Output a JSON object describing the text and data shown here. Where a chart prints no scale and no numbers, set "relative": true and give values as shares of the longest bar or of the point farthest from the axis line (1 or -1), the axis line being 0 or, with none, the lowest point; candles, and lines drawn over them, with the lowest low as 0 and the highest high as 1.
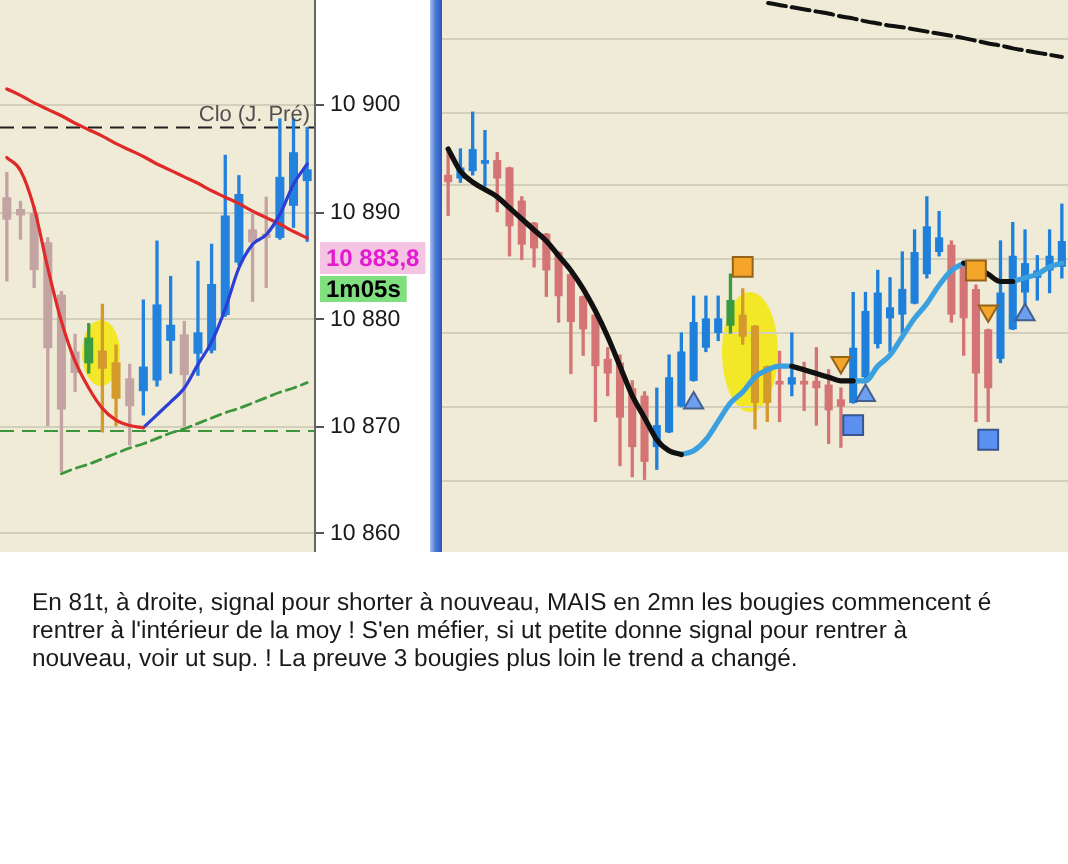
{
  "chart_data": [
    {
      "type": "candlestick",
      "categories": [
        null,
        null,
        null,
        null,
        null,
        null,
        null,
        null,
        null,
        null,
        null,
        null,
        null,
        null,
        null,
        null,
        null,
        null,
        null,
        null,
        null,
        null,
        null
      ],
      "ohlc": [
        [
          10891.4,
          10893.7,
          10883.6,
          10889.3
        ],
        [
          10890.3,
          10891.0,
          10887.5,
          10889.7
        ],
        [
          10889.9,
          10890.5,
          10883.0,
          10884.6
        ],
        [
          10887.2,
          10887.6,
          10870.1,
          10877.3
        ],
        [
          10882.3,
          10882.6,
          10865.8,
          10871.6
        ],
        [
          10877.0,
          10878.6,
          10873.3,
          10875.0
        ],
        [
          10875.9,
          10879.6,
          10875.0,
          10878.3
        ],
        [
          10877.1,
          10881.4,
          10869.5,
          10875.4
        ],
        [
          10876.0,
          10877.6,
          10870.1,
          10872.6
        ],
        [
          10874.5,
          10875.8,
          10868.3,
          10871.9
        ],
        [
          10873.3,
          10881.8,
          10871.1,
          10875.6
        ],
        [
          10874.3,
          10887.3,
          10873.8,
          10881.4
        ],
        [
          10878.0,
          10884.0,
          10875.0,
          10879.5
        ],
        [
          10878.6,
          10879.8,
          10870.1,
          10874.8
        ],
        [
          10876.8,
          10885.4,
          10874.8,
          10878.8
        ],
        [
          10877.1,
          10887.0,
          10876.9,
          10883.3
        ],
        [
          10880.4,
          10895.3,
          10880.3,
          10889.7
        ],
        [
          10885.3,
          10893.4,
          10885.1,
          10891.7
        ],
        [
          10888.4,
          10889.8,
          10881.7,
          10887.2
        ],
        [
          10888.0,
          10891.4,
          10883.0,
          10887.6
        ],
        [
          10887.6,
          10898.7,
          10887.5,
          10893.3
        ],
        [
          10890.6,
          10898.7,
          10888.6,
          10895.6
        ],
        [
          10892.9,
          10897.9,
          10887.3,
          10894.0
        ]
      ],
      "colors": [
        "#c4a3a3",
        "#c4a3a3",
        "#c4a3a3",
        "#c4a3a3",
        "#c4a3a3",
        "#c4a3a3",
        "#3a9a40",
        "#d49a2c",
        "#d49a2c",
        "#c4a3a3",
        "#2282de",
        "#2282de",
        "#2282de",
        "#c4a3a3",
        "#2282de",
        "#2282de",
        "#2282de",
        "#2282de",
        "#c4a3a3",
        "#c4a3a3",
        "#2282de",
        "#2282de",
        "#2282de"
      ],
      "series": [
        {
          "type": "line",
          "color": "#e02a2a",
          "values": [
            10895.1,
            10893.9,
            10890.4,
            10884.8,
            10879.8,
            10876.1,
            10873.6,
            10871.7,
            10870.6,
            10870.1,
            10869.9,
            null,
            null,
            null,
            null,
            null,
            null,
            null,
            null,
            null,
            null,
            null,
            null
          ]
        },
        {
          "type": "line",
          "color": "#2b3fd6",
          "values": [
            null,
            null,
            null,
            null,
            null,
            null,
            null,
            null,
            null,
            null,
            10869.9,
            10871.1,
            10872.3,
            10873.6,
            10875.8,
            10877.9,
            10881.0,
            10884.8,
            10887.0,
            10887.9,
            10889.8,
            10892.6,
            10894.5
          ]
        },
        {
          "type": "line",
          "color": "#e02a2a",
          "values": [
            10901.5,
            10900.9,
            10900.2,
            10899.6,
            10899.0,
            10898.3,
            10897.7,
            10897.1,
            10896.4,
            10895.8,
            10895.2,
            10894.5,
            10893.9,
            10893.3,
            10892.7,
            10892.0,
            10891.4,
            10890.8,
            10890.1,
            10889.5,
            10888.9,
            10888.2,
            10887.6
          ]
        },
        {
          "type": "line",
          "color": "#3c963c",
          "line_style": "dashed",
          "values": [
            null,
            null,
            null,
            null,
            10865.6,
            10866.1,
            10866.5,
            10867.0,
            10867.5,
            10868.0,
            10868.4,
            10868.9,
            10869.4,
            10869.8,
            10870.3,
            10870.8,
            10871.3,
            10871.7,
            10872.2,
            10872.7,
            10873.2,
            10873.6,
            10874.1
          ]
        }
      ],
      "ylim": [
        10858.3,
        10909.8
      ],
      "yticks": [
        {
          "value": 10860,
          "label": "10 860"
        },
        {
          "value": 10870,
          "label": "10 870"
        },
        {
          "value": 10880,
          "label": "10 880"
        },
        {
          "value": 10890,
          "label": "10 890"
        },
        {
          "value": 10900,
          "label": "10 900"
        }
      ],
      "grid": "y",
      "tick_labels": "y",
      "ref_lines": [
        {
          "axis": "y",
          "value": 10897.9,
          "label": "Clo (J. Pré)",
          "color": "#222222",
          "line_style": "dashed"
        },
        {
          "axis": "y",
          "value": 10869.6,
          "color": "#3c963c",
          "line_style": "dashed"
        }
      ],
      "annotations": [
        "10 883,8",
        "1m05s"
      ]
    },
    {
      "type": "candlestick",
      "relative": true,
      "categories": [
        null,
        null,
        null,
        null,
        null,
        null,
        null,
        null,
        null,
        null,
        null,
        null,
        null,
        null,
        null,
        null,
        null,
        null,
        null,
        null,
        null,
        null,
        null,
        null,
        null,
        null,
        null,
        null,
        null,
        null,
        null,
        null,
        null,
        null,
        null,
        null,
        null,
        null,
        null,
        null,
        null,
        null,
        null,
        null,
        null,
        null,
        null,
        null,
        null,
        null,
        null
      ],
      "ohlc": [
        [
          0.83,
          0.89,
          0.72,
          0.81
        ],
        [
          0.82,
          0.9,
          0.81,
          0.85
        ],
        [
          0.84,
          1.0,
          0.83,
          0.9
        ],
        [
          0.86,
          0.95,
          0.8,
          0.87
        ],
        [
          0.87,
          0.89,
          0.73,
          0.82
        ],
        [
          0.85,
          0.85,
          0.61,
          0.69
        ],
        [
          0.76,
          0.77,
          0.6,
          0.64
        ],
        [
          0.7,
          0.7,
          0.58,
          0.63
        ],
        [
          0.67,
          0.67,
          0.5,
          0.57
        ],
        [
          0.62,
          0.62,
          0.43,
          0.5
        ],
        [
          0.56,
          0.56,
          0.29,
          0.43
        ],
        [
          0.5,
          0.5,
          0.34,
          0.41
        ],
        [
          0.45,
          0.45,
          0.16,
          0.31
        ],
        [
          0.33,
          0.36,
          0.23,
          0.29
        ],
        [
          0.32,
          0.34,
          0.04,
          0.17
        ],
        [
          0.25,
          0.27,
          0.01,
          0.09
        ],
        [
          0.23,
          0.24,
          0.0,
          0.05
        ],
        [
          0.09,
          0.25,
          0.03,
          0.15
        ],
        [
          0.13,
          0.34,
          0.13,
          0.28
        ],
        [
          0.2,
          0.4,
          0.2,
          0.35
        ],
        [
          0.27,
          0.5,
          0.27,
          0.43
        ],
        [
          0.36,
          0.5,
          0.35,
          0.44
        ],
        [
          0.4,
          0.5,
          0.38,
          0.44
        ],
        [
          0.42,
          0.56,
          0.4,
          0.49
        ],
        [
          0.45,
          0.52,
          0.37,
          0.39
        ],
        [
          0.42,
          0.42,
          0.14,
          0.21
        ],
        [
          0.31,
          0.31,
          0.16,
          0.21
        ],
        [
          0.27,
          0.35,
          0.16,
          0.26
        ],
        [
          0.26,
          0.4,
          0.23,
          0.28
        ],
        [
          0.27,
          0.32,
          0.19,
          0.26
        ],
        [
          0.27,
          0.36,
          0.15,
          0.25
        ],
        [
          0.26,
          0.3,
          0.1,
          0.19
        ],
        [
          0.22,
          0.25,
          0.09,
          0.2
        ],
        [
          0.21,
          0.51,
          0.21,
          0.36
        ],
        [
          0.28,
          0.51,
          0.27,
          0.46
        ],
        [
          0.37,
          0.57,
          0.36,
          0.51
        ],
        [
          0.44,
          0.55,
          0.35,
          0.47
        ],
        [
          0.45,
          0.62,
          0.4,
          0.52
        ],
        [
          0.48,
          0.68,
          0.48,
          0.62
        ],
        [
          0.56,
          0.77,
          0.55,
          0.69
        ],
        [
          0.62,
          0.73,
          0.61,
          0.66
        ],
        [
          0.64,
          0.65,
          0.43,
          0.45
        ],
        [
          0.58,
          0.59,
          0.34,
          0.44
        ],
        [
          0.52,
          0.53,
          0.16,
          0.29
        ],
        [
          0.41,
          0.41,
          0.16,
          0.25
        ],
        [
          0.33,
          0.65,
          0.32,
          0.51
        ],
        [
          0.41,
          0.7,
          0.41,
          0.61
        ],
        [
          0.51,
          0.68,
          0.47,
          0.59
        ],
        [
          0.55,
          0.61,
          0.49,
          0.57
        ],
        [
          0.57,
          0.68,
          0.51,
          0.61
        ],
        [
          0.58,
          0.75,
          0.55,
          0.65
        ]
      ],
      "colors": [
        "#d47474",
        "#1f80dc",
        "#1f80dc",
        "#1f80dc",
        "#d47474",
        "#d47474",
        "#d47474",
        "#d47474",
        "#d47474",
        "#d47474",
        "#d47474",
        "#d47474",
        "#d47474",
        "#d47474",
        "#d47474",
        "#d47474",
        "#d47474",
        "#1f80dc",
        "#1f80dc",
        "#1f80dc",
        "#1f80dc",
        "#1f80dc",
        "#1f80dc",
        "#3a9a40",
        "#d49a2c",
        "#d49a2c",
        "#d49a2c",
        "#d47474",
        "#1f80dc",
        "#d47474",
        "#d47474",
        "#d47474",
        "#d47474",
        "#1f80dc",
        "#1f80dc",
        "#1f80dc",
        "#1f80dc",
        "#1f80dc",
        "#1f80dc",
        "#1f80dc",
        "#1f80dc",
        "#d47474",
        "#d47474",
        "#d47474",
        "#d47474",
        "#1f80dc",
        "#1f80dc",
        "#1f80dc",
        "#1f80dc",
        "#1f80dc",
        "#1f80dc"
      ],
      "series": [
        {
          "type": "line",
          "color": "#111111",
          "values": [
            0.9,
            0.84,
            0.81,
            0.79,
            0.77,
            0.74,
            0.71,
            0.68,
            0.65,
            0.61,
            0.57,
            0.52,
            0.46,
            0.39,
            0.31,
            0.23,
            0.17,
            0.11,
            0.08,
            0.07,
            null,
            null,
            null,
            null,
            null,
            null,
            null,
            null,
            0.31,
            0.3,
            0.29,
            0.28,
            0.27,
            0.27,
            null,
            null,
            null,
            null,
            null,
            null,
            null,
            null,
            0.59,
            0.58,
            0.56,
            0.54,
            0.54,
            null,
            null,
            null,
            null
          ]
        },
        {
          "type": "line",
          "color": "#3aa0e0",
          "values": [
            null,
            null,
            null,
            null,
            null,
            null,
            null,
            null,
            null,
            null,
            null,
            null,
            null,
            null,
            null,
            null,
            null,
            null,
            null,
            0.07,
            0.08,
            0.11,
            0.16,
            0.21,
            0.24,
            0.28,
            0.3,
            0.31,
            0.31,
            null,
            null,
            null,
            null,
            0.27,
            0.27,
            0.31,
            0.34,
            0.39,
            0.44,
            0.48,
            0.53,
            0.57,
            0.59,
            null,
            null,
            null,
            0.54,
            0.55,
            0.56,
            0.58,
            0.59
          ]
        },
        {
          "type": "scatter",
          "color": "#f5a52a",
          "marker": "square",
          "values": [
            null,
            null,
            null,
            null,
            null,
            null,
            null,
            null,
            null,
            null,
            null,
            null,
            null,
            null,
            null,
            null,
            null,
            null,
            null,
            null,
            null,
            null,
            null,
            null,
            0.58,
            null,
            null,
            null,
            null,
            null,
            null,
            null,
            null,
            null,
            null,
            null,
            null,
            null,
            null,
            null,
            null,
            null,
            null,
            0.57,
            null,
            null,
            null,
            null,
            null,
            null,
            null
          ]
        },
        {
          "type": "scatter",
          "color": "#f5a52a",
          "marker": "triangle",
          "values": [
            null,
            null,
            null,
            null,
            null,
            null,
            null,
            null,
            null,
            null,
            null,
            null,
            null,
            null,
            null,
            null,
            null,
            null,
            null,
            null,
            null,
            null,
            null,
            null,
            null,
            null,
            null,
            null,
            null,
            null,
            null,
            null,
            0.32,
            null,
            null,
            null,
            null,
            null,
            null,
            null,
            null,
            null,
            null,
            null,
            0.46,
            null,
            null,
            null,
            null,
            null,
            null
          ]
        },
        {
          "type": "scatter",
          "color": "#6e9ef0",
          "marker": "triangle",
          "values": [
            null,
            null,
            null,
            null,
            null,
            null,
            null,
            null,
            null,
            null,
            null,
            null,
            null,
            null,
            null,
            null,
            null,
            null,
            null,
            null,
            0.21,
            null,
            null,
            null,
            null,
            null,
            null,
            null,
            null,
            null,
            null,
            null,
            null,
            null,
            0.23,
            null,
            null,
            null,
            null,
            null,
            null,
            null,
            null,
            null,
            null,
            null,
            null,
            0.45,
            null,
            null,
            null
          ]
        },
        {
          "type": "scatter",
          "color": "#5b8ff0",
          "marker": "square",
          "values": [
            null,
            null,
            null,
            null,
            null,
            null,
            null,
            null,
            null,
            null,
            null,
            null,
            null,
            null,
            null,
            null,
            null,
            null,
            null,
            null,
            null,
            null,
            null,
            null,
            null,
            null,
            null,
            null,
            null,
            null,
            null,
            null,
            null,
            0.15,
            null,
            null,
            null,
            null,
            null,
            null,
            null,
            null,
            null,
            null,
            0.11,
            null,
            null,
            null,
            null,
            null,
            null
          ]
        }
      ],
      "grid": "y",
      "tick_labels": false
    },
    {
      "type": "line",
      "relative": true,
      "categories": [
        null,
        null,
        null,
        null,
        null,
        null,
        null,
        null,
        null,
        null,
        null,
        null,
        null,
        null,
        null,
        null,
        null,
        null,
        null,
        null,
        null,
        null,
        null,
        null,
        null
      ],
      "series": [
        {
          "type": "line",
          "color": "#111111",
          "line_style": "dashed",
          "values": [
            1.0,
            0.96,
            0.92,
            0.88,
            0.84,
            0.8,
            0.75,
            0.71,
            0.66,
            0.62,
            0.58,
            0.55,
            0.51,
            0.47,
            0.43,
            0.39,
            0.35,
            0.3,
            0.25,
            0.21,
            0.16,
            0.12,
            0.08,
            0.04,
            0.0
          ]
        }
      ],
      "tick_labels": false
    },
    {
      "type": "other",
      "annotations": [
        "En 81t, à droite, signal pour shorter à nouveau, MAIS en 2mn les bougies commencent é rentrer à l'intérieur de la moy ! S'en méfier, si ut petite donne signal pour rentrer à nouveau, voir ut sup. ! La preuve 3 bougies plus loin le trend a changé."
      ]
    }
  ]
}
